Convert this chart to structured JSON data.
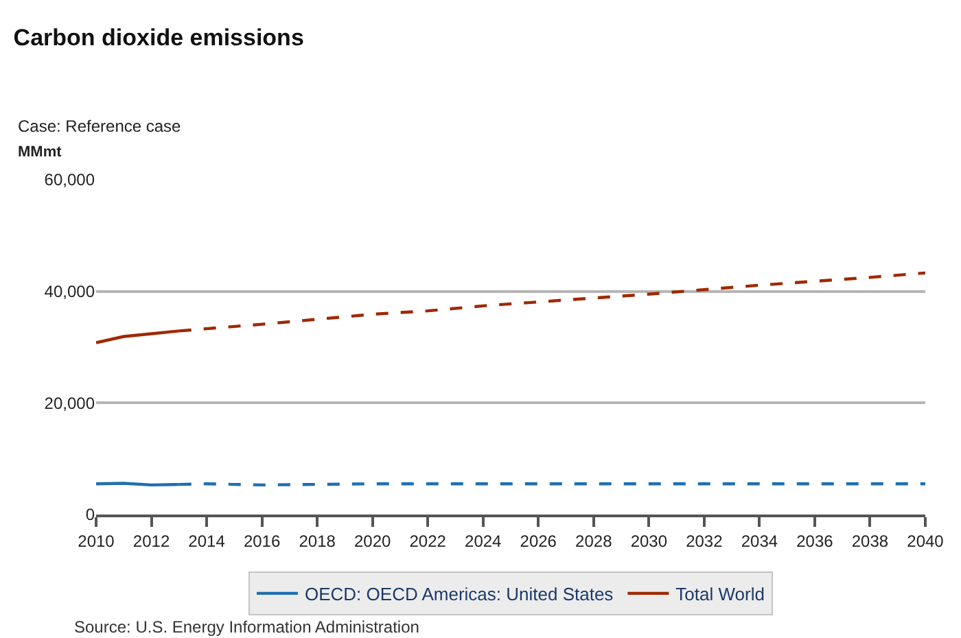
{
  "chart_data": {
    "type": "line",
    "title": "Carbon dioxide emissions",
    "subtitle": "Case: Reference case",
    "ylabel": "MMmt",
    "annotations": [
      "Source: U.S. Energy Information Administration"
    ],
    "xlim": [
      2010,
      2040
    ],
    "xticks": [
      2010,
      2012,
      2014,
      2016,
      2018,
      2020,
      2022,
      2024,
      2026,
      2028,
      2030,
      2032,
      2034,
      2036,
      2038,
      2040
    ],
    "ylim": [
      0,
      60000
    ],
    "yticks": [
      0,
      {
        "value": 20000,
        "label": "20,000"
      },
      {
        "value": 40000,
        "label": "40,000"
      },
      {
        "value": 60000,
        "label": "60,000"
      }
    ],
    "grid": "y",
    "legend": "bottom",
    "marker": "none",
    "series": [
      {
        "name": "OECD: OECD Americas: United States",
        "color": "#1f6fb2",
        "line_style": "solid",
        "x": [
          2010,
          2011,
          2012,
          2013
        ],
        "values": [
          5500,
          5600,
          5300,
          5400
        ]
      },
      {
        "color": "#1f6fb2",
        "line_style": "dashed",
        "x": [
          2013,
          2014,
          2015,
          2016,
          2018,
          2020,
          2022,
          2024,
          2026,
          2028,
          2030,
          2032,
          2034,
          2036,
          2038,
          2040
        ],
        "values": [
          5400,
          5500,
          5400,
          5300,
          5400,
          5500,
          5500,
          5500,
          5500,
          5500,
          5500,
          5500,
          5500,
          5500,
          5500,
          5500
        ]
      },
      {
        "name": "Total World",
        "color": "#a02800",
        "line_style": "solid",
        "x": [
          2010,
          2011,
          2012,
          2013
        ],
        "values": [
          30800,
          31900,
          32400,
          32900
        ]
      },
      {
        "color": "#a02800",
        "line_style": "dashed",
        "x": [
          2013,
          2014,
          2016,
          2018,
          2020,
          2022,
          2024,
          2026,
          2028,
          2030,
          2032,
          2034,
          2036,
          2038,
          2040
        ],
        "values": [
          32900,
          33300,
          34100,
          35000,
          35900,
          36500,
          37400,
          38100,
          38800,
          39500,
          40300,
          41100,
          41800,
          42500,
          43300
        ]
      }
    ]
  }
}
